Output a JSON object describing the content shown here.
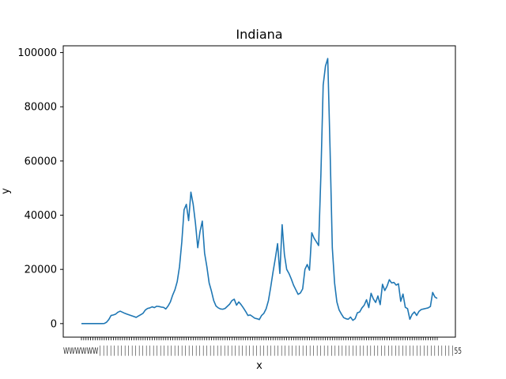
{
  "chart_data": {
    "type": "line",
    "title": "Indiana",
    "xlabel": "x",
    "ylabel": "y",
    "ylim": [
      -5000,
      102500
    ],
    "grid": false,
    "line_color": "#1f77b4",
    "y_ticks": [
      {
        "value": 0,
        "label": "0"
      },
      {
        "value": 20000,
        "label": "20000"
      },
      {
        "value": 40000,
        "label": "40000"
      },
      {
        "value": 60000,
        "label": "60000"
      },
      {
        "value": 80000,
        "label": "80000"
      },
      {
        "value": 100000,
        "label": "100000"
      }
    ],
    "series": [
      {
        "values": [
          0,
          0,
          0,
          0,
          0,
          0,
          0,
          0,
          0,
          0,
          50,
          500,
          1500,
          3000,
          3200,
          3500,
          4200,
          4600,
          4200,
          3800,
          3500,
          3200,
          2900,
          2600,
          2300,
          2800,
          3300,
          3800,
          5000,
          5600,
          5800,
          6200,
          5900,
          6400,
          6300,
          6100,
          6000,
          5400,
          6500,
          8000,
          10500,
          12500,
          15500,
          21000,
          30000,
          42000,
          44000,
          38000,
          48500,
          44000,
          37000,
          28000,
          34000,
          37800,
          26000,
          21000,
          15000,
          12000,
          8500,
          6500,
          5800,
          5400,
          5300,
          5600,
          6400,
          7200,
          8500,
          9000,
          6800,
          8000,
          7000,
          5800,
          4500,
          3000,
          3200,
          2600,
          2000,
          1800,
          1500,
          3000,
          3800,
          5500,
          8500,
          13500,
          19000,
          24000,
          29500,
          18500,
          36500,
          25500,
          20000,
          18500,
          16500,
          14200,
          12500,
          10800,
          11300,
          12800,
          20000,
          21800,
          19700,
          33500,
          31500,
          30200,
          28800,
          55000,
          88000,
          95000,
          97800,
          65000,
          28000,
          15000,
          8000,
          5000,
          3500,
          2200,
          1800,
          1600,
          2400,
          1200,
          1800,
          4000,
          4300,
          5800,
          6800,
          8800,
          5900,
          11200,
          9100,
          7800,
          10200,
          7000,
          14500,
          12200,
          13800,
          16200,
          15000,
          15200,
          14200,
          14700,
          8200,
          10900,
          6000,
          5500,
          1600,
          3400,
          4300,
          3000,
          4500,
          5200,
          5400,
          5600,
          5800,
          6300,
          11500,
          9800,
          9300
        ]
      }
    ]
  }
}
